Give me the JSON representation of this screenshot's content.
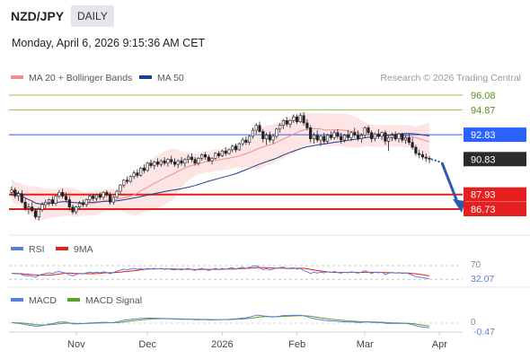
{
  "header": {
    "pair": "NZD/JPY",
    "timeframe": "DAILY",
    "datetime": "Monday, April 6, 2026 9:15:36 AM CET"
  },
  "legend": {
    "bollinger": "MA 20 + Bollinger Bands",
    "ma50": "MA 50",
    "copyright": "Research © 2026 Trading Central"
  },
  "levels": [
    {
      "value": "96.08",
      "kind": "resistance",
      "color": "#8bc34a"
    },
    {
      "value": "94.87",
      "kind": "resistance",
      "color": "#8bc34a"
    },
    {
      "value": "92.83",
      "kind": "pivot",
      "color": "#2962ff"
    },
    {
      "value": "90.83",
      "kind": "last",
      "color": "#2b2b2b"
    },
    {
      "value": "87.93",
      "kind": "support",
      "color": "#e51e1e"
    },
    {
      "value": "86.73",
      "kind": "support",
      "color": "#e51e1e"
    }
  ],
  "rsi": {
    "label": "RSI",
    "ma_label": "9MA",
    "level_label": "70",
    "value_label": "32.07",
    "colors": {
      "rsi": "#5b7fd6",
      "ma": "#e51e1e"
    }
  },
  "macd": {
    "label": "MACD",
    "signal_label": "MACD Signal",
    "zero_label": "0",
    "value_label": "-0.47",
    "colors": {
      "macd": "#5b7fd6",
      "signal": "#5aa02c"
    }
  },
  "xaxis": {
    "labels": [
      {
        "text": "Nov",
        "i": 19
      },
      {
        "text": "Dec",
        "i": 40
      },
      {
        "text": "2026",
        "i": 62
      },
      {
        "text": "Feb",
        "i": 84
      },
      {
        "text": "Mar",
        "i": 104
      },
      {
        "text": "Apr",
        "i": 126
      }
    ]
  },
  "chart_data": {
    "type": "candlestick",
    "title": "NZD/JPY",
    "timeframe": "Daily",
    "ylim": [
      85.5,
      97.0
    ],
    "candles_ohlc": [
      [
        88.1,
        88.6,
        87.8,
        88.3
      ],
      [
        88.3,
        88.5,
        87.6,
        87.8
      ],
      [
        87.8,
        88.2,
        87.4,
        88.0
      ],
      [
        88.0,
        88.3,
        87.2,
        87.3
      ],
      [
        87.3,
        87.6,
        86.6,
        86.8
      ],
      [
        86.8,
        87.2,
        86.3,
        86.9
      ],
      [
        86.9,
        87.3,
        86.5,
        86.6
      ],
      [
        86.6,
        86.8,
        85.9,
        86.1
      ],
      [
        86.1,
        86.9,
        85.8,
        86.7
      ],
      [
        86.7,
        87.3,
        86.5,
        87.1
      ],
      [
        87.1,
        87.5,
        86.8,
        87.3
      ],
      [
        87.3,
        87.6,
        87.0,
        87.5
      ],
      [
        87.5,
        87.8,
        87.0,
        87.2
      ],
      [
        87.2,
        87.9,
        87.0,
        87.8
      ],
      [
        87.8,
        88.3,
        87.6,
        88.1
      ],
      [
        88.1,
        88.4,
        87.6,
        87.8
      ],
      [
        87.8,
        88.1,
        87.3,
        87.5
      ],
      [
        87.5,
        87.8,
        86.6,
        86.9
      ],
      [
        86.9,
        87.1,
        86.3,
        86.5
      ],
      [
        86.5,
        87.0,
        86.3,
        86.9
      ],
      [
        86.9,
        87.4,
        86.7,
        87.2
      ],
      [
        87.2,
        87.5,
        86.9,
        87.1
      ],
      [
        87.1,
        87.6,
        86.9,
        87.5
      ],
      [
        87.5,
        87.9,
        87.3,
        87.8
      ],
      [
        87.8,
        88.0,
        87.4,
        87.6
      ],
      [
        87.6,
        88.0,
        87.4,
        87.9
      ],
      [
        87.9,
        88.1,
        87.5,
        87.7
      ],
      [
        87.7,
        88.2,
        87.5,
        88.1
      ],
      [
        88.1,
        88.3,
        87.7,
        87.9
      ],
      [
        87.9,
        88.1,
        87.1,
        87.3
      ],
      [
        87.3,
        87.8,
        87.1,
        87.7
      ],
      [
        87.7,
        88.3,
        87.6,
        88.2
      ],
      [
        88.2,
        88.8,
        88.0,
        88.7
      ],
      [
        88.7,
        89.2,
        88.5,
        89.1
      ],
      [
        89.1,
        89.4,
        88.8,
        89.0
      ],
      [
        89.0,
        89.5,
        88.9,
        89.4
      ],
      [
        89.4,
        89.9,
        89.2,
        89.7
      ],
      [
        89.7,
        90.0,
        89.3,
        89.5
      ],
      [
        89.5,
        90.2,
        89.4,
        90.1
      ],
      [
        90.1,
        90.4,
        89.7,
        89.9
      ],
      [
        89.9,
        90.6,
        89.8,
        90.5
      ],
      [
        90.5,
        90.8,
        90.1,
        90.3
      ],
      [
        90.3,
        90.7,
        90.0,
        90.6
      ],
      [
        90.6,
        90.9,
        90.2,
        90.4
      ],
      [
        90.4,
        90.8,
        90.2,
        90.7
      ],
      [
        90.7,
        91.0,
        90.3,
        90.5
      ],
      [
        90.5,
        90.9,
        90.2,
        90.8
      ],
      [
        90.8,
        91.1,
        90.4,
        90.6
      ],
      [
        90.6,
        90.9,
        90.2,
        90.4
      ],
      [
        90.4,
        90.8,
        90.1,
        90.7
      ],
      [
        90.7,
        91.0,
        90.3,
        90.5
      ],
      [
        90.5,
        90.9,
        90.2,
        90.8
      ],
      [
        90.8,
        91.2,
        90.5,
        91.0
      ],
      [
        91.0,
        91.3,
        90.6,
        90.8
      ],
      [
        90.8,
        91.0,
        90.3,
        90.5
      ],
      [
        90.5,
        91.0,
        90.3,
        90.9
      ],
      [
        90.9,
        91.3,
        90.7,
        91.2
      ],
      [
        91.2,
        91.4,
        90.8,
        91.0
      ],
      [
        91.0,
        91.2,
        90.6,
        90.7
      ],
      [
        90.7,
        91.0,
        90.4,
        90.9
      ],
      [
        90.9,
        91.4,
        90.8,
        91.3
      ],
      [
        91.3,
        91.5,
        90.9,
        91.1
      ],
      [
        91.1,
        91.6,
        91.0,
        91.5
      ],
      [
        91.5,
        91.8,
        91.1,
        91.3
      ],
      [
        91.3,
        91.7,
        91.2,
        91.6
      ],
      [
        91.6,
        92.0,
        91.4,
        91.9
      ],
      [
        91.9,
        92.1,
        91.4,
        91.6
      ],
      [
        91.6,
        92.2,
        91.5,
        92.1
      ],
      [
        92.1,
        92.6,
        91.9,
        92.4
      ],
      [
        92.4,
        92.7,
        92.0,
        92.2
      ],
      [
        92.2,
        92.8,
        92.0,
        92.7
      ],
      [
        92.7,
        93.4,
        92.5,
        93.2
      ],
      [
        93.2,
        93.8,
        92.9,
        93.6
      ],
      [
        93.6,
        93.9,
        93.0,
        93.1
      ],
      [
        93.1,
        93.3,
        92.2,
        92.5
      ],
      [
        92.5,
        93.0,
        92.0,
        92.8
      ],
      [
        92.8,
        93.1,
        92.2,
        92.4
      ],
      [
        92.4,
        92.9,
        92.1,
        92.7
      ],
      [
        92.7,
        93.4,
        92.5,
        93.3
      ],
      [
        93.3,
        93.8,
        93.0,
        93.6
      ],
      [
        93.6,
        94.1,
        93.3,
        94.0
      ],
      [
        94.0,
        94.3,
        93.5,
        93.7
      ],
      [
        93.7,
        94.1,
        93.4,
        94.0
      ],
      [
        94.0,
        94.5,
        93.8,
        94.3
      ],
      [
        94.3,
        94.5,
        93.7,
        93.9
      ],
      [
        93.9,
        94.6,
        93.8,
        94.4
      ],
      [
        94.4,
        94.7,
        93.6,
        93.8
      ],
      [
        93.8,
        94.1,
        93.2,
        93.4
      ],
      [
        93.4,
        93.6,
        92.2,
        92.5
      ],
      [
        92.5,
        93.0,
        92.1,
        92.8
      ],
      [
        92.8,
        93.2,
        92.2,
        92.4
      ],
      [
        92.4,
        92.8,
        91.9,
        92.7
      ],
      [
        92.7,
        93.0,
        92.1,
        92.3
      ],
      [
        92.3,
        92.9,
        92.1,
        92.8
      ],
      [
        92.8,
        93.1,
        92.4,
        92.6
      ],
      [
        92.6,
        93.2,
        92.4,
        93.0
      ],
      [
        93.0,
        93.3,
        92.5,
        92.7
      ],
      [
        92.7,
        93.0,
        92.1,
        92.4
      ],
      [
        92.4,
        92.9,
        92.2,
        92.8
      ],
      [
        92.8,
        93.2,
        92.4,
        92.6
      ],
      [
        92.6,
        93.1,
        92.3,
        93.0
      ],
      [
        93.0,
        93.4,
        92.6,
        92.8
      ],
      [
        92.8,
        93.2,
        92.3,
        92.5
      ],
      [
        92.5,
        92.9,
        92.2,
        92.8
      ],
      [
        92.8,
        93.5,
        92.6,
        93.4
      ],
      [
        93.4,
        93.6,
        92.8,
        93.0
      ],
      [
        93.0,
        93.2,
        92.2,
        92.5
      ],
      [
        92.5,
        93.0,
        92.3,
        92.9
      ],
      [
        92.9,
        93.3,
        92.5,
        92.7
      ],
      [
        92.7,
        93.1,
        92.4,
        93.0
      ],
      [
        93.0,
        93.2,
        92.0,
        92.3
      ],
      [
        92.3,
        92.8,
        91.5,
        92.6
      ],
      [
        92.6,
        93.0,
        92.3,
        92.8
      ],
      [
        92.8,
        93.1,
        92.3,
        92.5
      ],
      [
        92.5,
        93.0,
        92.2,
        92.9
      ],
      [
        92.9,
        93.0,
        92.2,
        92.4
      ],
      [
        92.4,
        92.8,
        92.1,
        92.6
      ],
      [
        92.6,
        92.9,
        92.0,
        92.2
      ],
      [
        92.2,
        92.6,
        91.6,
        91.8
      ],
      [
        91.8,
        92.0,
        91.1,
        91.3
      ],
      [
        91.3,
        91.6,
        90.9,
        91.2
      ],
      [
        91.2,
        91.5,
        90.8,
        91.0
      ],
      [
        91.0,
        91.3,
        90.6,
        90.9
      ],
      [
        90.9,
        91.1,
        90.5,
        90.83
      ]
    ],
    "forecast": {
      "from": 90.83,
      "to": 86.73
    },
    "rsi_series": [
      48,
      46,
      47,
      44,
      40,
      41,
      39,
      36,
      41,
      45,
      47,
      49,
      47,
      51,
      53,
      50,
      48,
      43,
      40,
      44,
      47,
      46,
      49,
      51,
      49,
      51,
      49,
      52,
      50,
      46,
      50,
      54,
      57,
      60,
      58,
      60,
      62,
      59,
      62,
      59,
      62,
      60,
      62,
      60,
      62,
      59,
      61,
      59,
      57,
      60,
      57,
      60,
      62,
      59,
      56,
      60,
      62,
      59,
      56,
      59,
      62,
      59,
      62,
      59,
      62,
      64,
      60,
      63,
      65,
      62,
      65,
      68,
      70,
      65,
      58,
      61,
      57,
      60,
      63,
      64,
      66,
      61,
      63,
      64,
      60,
      62,
      55,
      52,
      47,
      51,
      48,
      51,
      49,
      52,
      50,
      53,
      50,
      48,
      51,
      49,
      52,
      50,
      48,
      51,
      55,
      51,
      47,
      51,
      49,
      51,
      44,
      48,
      50,
      48,
      50,
      47,
      49,
      46,
      42,
      38,
      36,
      35,
      33,
      32.07
    ],
    "macd_series": [
      0.05,
      0.0,
      -0.02,
      -0.08,
      -0.15,
      -0.2,
      -0.25,
      -0.32,
      -0.3,
      -0.25,
      -0.18,
      -0.1,
      -0.05,
      0.02,
      0.1,
      0.12,
      0.1,
      0.02,
      -0.06,
      -0.08,
      -0.06,
      -0.05,
      -0.02,
      0.02,
      0.03,
      0.05,
      0.05,
      0.08,
      0.08,
      0.04,
      0.06,
      0.12,
      0.2,
      0.28,
      0.32,
      0.36,
      0.42,
      0.44,
      0.48,
      0.48,
      0.5,
      0.5,
      0.5,
      0.48,
      0.48,
      0.46,
      0.46,
      0.44,
      0.4,
      0.4,
      0.38,
      0.38,
      0.4,
      0.38,
      0.34,
      0.34,
      0.36,
      0.35,
      0.32,
      0.32,
      0.34,
      0.34,
      0.36,
      0.36,
      0.38,
      0.42,
      0.42,
      0.46,
      0.52,
      0.54,
      0.6,
      0.7,
      0.8,
      0.8,
      0.72,
      0.7,
      0.64,
      0.62,
      0.66,
      0.7,
      0.76,
      0.76,
      0.78,
      0.8,
      0.78,
      0.8,
      0.74,
      0.66,
      0.52,
      0.46,
      0.38,
      0.34,
      0.28,
      0.26,
      0.22,
      0.22,
      0.18,
      0.14,
      0.14,
      0.12,
      0.12,
      0.1,
      0.06,
      0.06,
      0.12,
      0.12,
      0.06,
      0.06,
      0.04,
      0.06,
      -0.02,
      -0.04,
      -0.02,
      -0.04,
      -0.02,
      -0.04,
      -0.04,
      -0.08,
      -0.16,
      -0.26,
      -0.34,
      -0.4,
      -0.44,
      -0.47
    ]
  }
}
